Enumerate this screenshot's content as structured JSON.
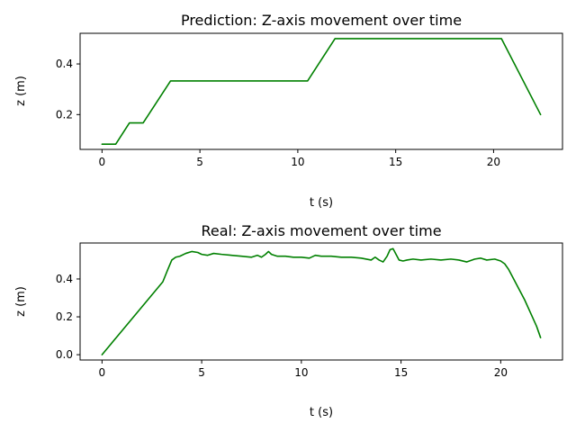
{
  "chart_data": [
    {
      "type": "line",
      "title": "Prediction: Z-axis movement over time",
      "xlabel": "t (s)",
      "ylabel": "z (m)",
      "xlim": [
        -1.12,
        23.52
      ],
      "ylim": [
        0.0625,
        0.521
      ],
      "xticks": [
        0,
        5,
        10,
        15,
        20
      ],
      "yticks": [
        0.2,
        0.4
      ],
      "grid": false,
      "legend": "none",
      "series": [
        {
          "color": "#008000",
          "x": [
            0,
            0.7,
            1.4,
            2.1,
            3.5,
            10.5,
            11.9,
            20.4,
            22.4
          ],
          "y": [
            0.083,
            0.083,
            0.167,
            0.167,
            0.333,
            0.333,
            0.5,
            0.5,
            0.2
          ]
        }
      ]
    },
    {
      "type": "line",
      "title": "Real: Z-axis movement over time",
      "xlabel": "t (s)",
      "ylabel": "z (m)",
      "xlim": [
        -1.1,
        23.1
      ],
      "ylim": [
        -0.028,
        0.59
      ],
      "xticks": [
        0,
        5,
        10,
        15,
        20
      ],
      "yticks": [
        0.0,
        0.2,
        0.4
      ],
      "grid": false,
      "legend": "none",
      "series": [
        {
          "color": "#008000",
          "x": [
            0,
            3.05,
            3.3,
            3.5,
            3.7,
            3.9,
            4.2,
            4.5,
            4.8,
            5.0,
            5.3,
            5.6,
            6.0,
            6.5,
            7.0,
            7.5,
            7.8,
            8.0,
            8.2,
            8.35,
            8.5,
            8.8,
            9.2,
            9.6,
            10.0,
            10.4,
            10.7,
            11.0,
            11.5,
            12.0,
            12.5,
            13.0,
            13.5,
            13.7,
            13.9,
            14.1,
            14.3,
            14.45,
            14.6,
            14.75,
            14.9,
            15.1,
            15.3,
            15.6,
            16.0,
            16.5,
            17.0,
            17.5,
            17.9,
            18.3,
            18.7,
            19.0,
            19.3,
            19.7,
            20.0,
            20.2,
            20.4,
            20.6,
            20.9,
            21.2,
            21.5,
            21.8,
            22.0
          ],
          "y": [
            0.0,
            0.385,
            0.45,
            0.5,
            0.515,
            0.52,
            0.535,
            0.545,
            0.54,
            0.53,
            0.525,
            0.535,
            0.53,
            0.525,
            0.52,
            0.515,
            0.525,
            0.515,
            0.53,
            0.545,
            0.53,
            0.52,
            0.52,
            0.515,
            0.515,
            0.51,
            0.525,
            0.52,
            0.52,
            0.515,
            0.515,
            0.51,
            0.5,
            0.515,
            0.5,
            0.49,
            0.52,
            0.555,
            0.56,
            0.53,
            0.5,
            0.495,
            0.5,
            0.505,
            0.5,
            0.505,
            0.5,
            0.505,
            0.5,
            0.49,
            0.505,
            0.51,
            0.5,
            0.505,
            0.495,
            0.48,
            0.45,
            0.41,
            0.35,
            0.29,
            0.22,
            0.15,
            0.09
          ]
        }
      ]
    }
  ]
}
